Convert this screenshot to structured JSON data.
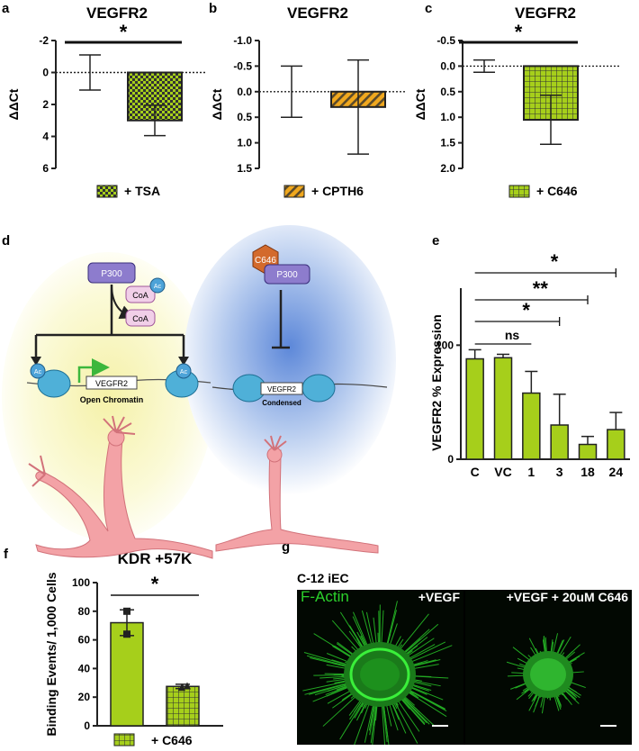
{
  "colors": {
    "green": "#a6cf1b",
    "orange": "#f0a81e",
    "dark": "#333333",
    "actin": "#2bd12b",
    "p300": "#8d7ccd",
    "c646": "#d36a2c",
    "coa": "#f1cfe8",
    "ac": "#4da3d8",
    "nucleosome": "#4fb0d8",
    "neuron": "#f3a2a6"
  },
  "panels": {
    "a": {
      "label": "a"
    },
    "b": {
      "label": "b"
    },
    "c": {
      "label": "c"
    },
    "d": {
      "label": "d"
    },
    "e": {
      "label": "e"
    },
    "f": {
      "label": "f"
    },
    "g": {
      "label": "g"
    }
  },
  "chart_data": [
    {
      "id": "a",
      "type": "bar",
      "title": "VEGFR2",
      "ylabel": "ΔΔCt",
      "y_inverted": true,
      "ylim": [
        -2,
        6
      ],
      "yticks": [
        -2,
        0,
        2,
        4,
        6
      ],
      "baseline_dotted": 0,
      "series": [
        {
          "name": "",
          "x": "control",
          "value": 0,
          "error": 1.1,
          "style": "none"
        },
        {
          "name": "+ TSA",
          "x": "TSA",
          "value": 3.0,
          "error": 0.95,
          "style": "checker"
        }
      ],
      "significance": [
        {
          "from": 0,
          "to": 1,
          "label": "*"
        }
      ],
      "legend": [
        {
          "label": "+ TSA",
          "style": "checker"
        }
      ]
    },
    {
      "id": "b",
      "type": "bar",
      "title": "VEGFR2",
      "ylabel": "ΔΔCt",
      "y_inverted": true,
      "ylim": [
        -1.0,
        1.5
      ],
      "yticks": [
        "-1.0",
        "-0.5",
        "0.0",
        "0.5",
        "1.0",
        "1.5"
      ],
      "baseline_dotted": 0,
      "series": [
        {
          "name": "",
          "x": "control",
          "value": 0,
          "error": 0.5,
          "style": "none"
        },
        {
          "name": "+ CPTH6",
          "x": "CPTH6",
          "value": 0.3,
          "error": 0.92,
          "style": "stripe"
        }
      ],
      "legend": [
        {
          "label": "+ CPTH6",
          "style": "stripe"
        }
      ]
    },
    {
      "id": "c",
      "type": "bar",
      "title": "VEGFR2",
      "ylabel": "ΔΔCt",
      "y_inverted": true,
      "ylim": [
        -0.5,
        2.0
      ],
      "yticks": [
        "-0.5",
        "0.0",
        "0.5",
        "1.0",
        "1.5",
        "2.0"
      ],
      "baseline_dotted": 0,
      "series": [
        {
          "name": "",
          "x": "control",
          "value": 0,
          "error": 0.12,
          "style": "none"
        },
        {
          "name": "+ C646",
          "x": "C646",
          "value": 1.05,
          "error": 0.48,
          "style": "grid"
        }
      ],
      "significance": [
        {
          "from": 0,
          "to": 1,
          "label": "*"
        }
      ],
      "legend": [
        {
          "label": "+ C646",
          "style": "grid"
        }
      ]
    },
    {
      "id": "e",
      "type": "bar",
      "ylabel": "VEGFR2 % Expression",
      "ylim": [
        0,
        150
      ],
      "yticks": [
        0,
        100
      ],
      "categories": [
        "C",
        "VC",
        "1",
        "3",
        "18",
        "24"
      ],
      "values": [
        88,
        89,
        58,
        30,
        13,
        26
      ],
      "errors": [
        8,
        3,
        19,
        27,
        7,
        15
      ],
      "significance": [
        {
          "from": 0,
          "to": 2,
          "label": "ns"
        },
        {
          "from": 0,
          "to": 3,
          "label": "*"
        },
        {
          "from": 0,
          "to": 4,
          "label": "**"
        },
        {
          "from": 0,
          "to": 5,
          "label": "*"
        }
      ]
    },
    {
      "id": "f",
      "type": "bar",
      "title": "KDR +57K",
      "ylabel": "Binding Events/ 1,000 Cells",
      "ylim": [
        0,
        100
      ],
      "yticks": [
        0,
        20,
        40,
        60,
        80,
        100
      ],
      "series": [
        {
          "name": "",
          "x": "control",
          "value": 72,
          "error": 9,
          "points": [
            80,
            64
          ],
          "style": "solid"
        },
        {
          "name": "+ C646",
          "x": "C646",
          "value": 27.5,
          "error": 1.5,
          "points": [
            27,
            28
          ],
          "style": "grid"
        }
      ],
      "significance": [
        {
          "from": 0,
          "to": 1,
          "label": "*"
        }
      ],
      "legend": [
        {
          "label": "+ C646",
          "style": "grid"
        }
      ]
    }
  ],
  "diagram_d": {
    "p300": "P300",
    "coa": "CoA",
    "ac": "Ac",
    "c646": "C646",
    "gene_left": "VEGFR2",
    "gene_right": "VEGFR2",
    "state_left": "Open Chromatin",
    "state_right": "Condensed"
  },
  "micrograph_g": {
    "cell_line": "C-12 iEC",
    "stain": "F-Actin",
    "left_condition": "+VEGF",
    "right_condition": "+VEGF + 20uM C646"
  }
}
